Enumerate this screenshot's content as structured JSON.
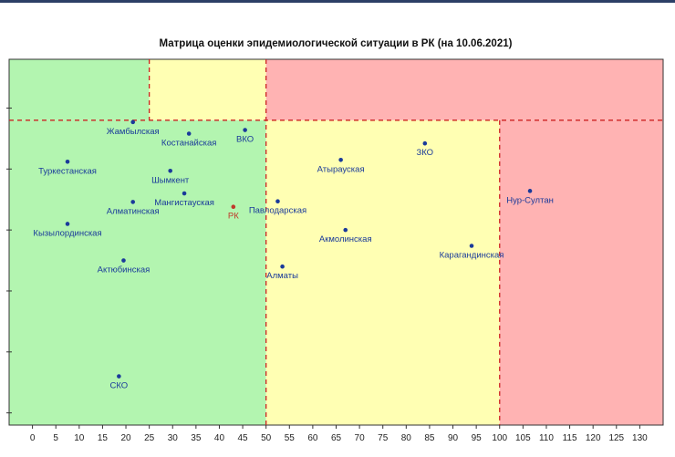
{
  "chart_data": {
    "type": "scatter",
    "title": "Матрица оценки эпидемиологической ситуации в РК (на 10.06.2021)",
    "xlabel": "",
    "ylabel": "",
    "xlim": [
      -5,
      135
    ],
    "ylim": [
      0,
      6
    ],
    "x_ticks": [
      0,
      5,
      10,
      15,
      20,
      25,
      30,
      35,
      40,
      45,
      50,
      55,
      60,
      65,
      70,
      75,
      80,
      85,
      90,
      95,
      100,
      105,
      110,
      115,
      120,
      125,
      130
    ],
    "y_ticks": [
      0.2,
      1.2,
      2.2,
      3.2,
      4.2,
      5.2
    ],
    "grid": false,
    "zones": [
      {
        "x": [
          -5,
          25
        ],
        "y": [
          5,
          6
        ],
        "color": "#b3f5b0"
      },
      {
        "x": [
          25,
          50
        ],
        "y": [
          5,
          6
        ],
        "color": "#ffffb3"
      },
      {
        "x": [
          50,
          135
        ],
        "y": [
          5,
          6
        ],
        "color": "#ffb3b3"
      },
      {
        "x": [
          -5,
          50
        ],
        "y": [
          0,
          5
        ],
        "color": "#b3f5b0"
      },
      {
        "x": [
          50,
          100
        ],
        "y": [
          0,
          5
        ],
        "color": "#ffffb3"
      },
      {
        "x": [
          100,
          135
        ],
        "y": [
          0,
          5
        ],
        "color": "#ffb3b3"
      }
    ],
    "thresholds": {
      "vertical": [
        {
          "x": 25,
          "y": [
            5,
            6
          ]
        },
        {
          "x": 50,
          "y": [
            0,
            6
          ]
        },
        {
          "x": 100,
          "y": [
            0,
            5
          ]
        }
      ],
      "horizontal": [
        {
          "y": 5
        }
      ],
      "color": "#cc2222"
    },
    "points": [
      {
        "label": "Жамбылская",
        "x": 21.5,
        "y": 4.97,
        "color": "#1a3a9a"
      },
      {
        "label": "ВКО",
        "x": 45.5,
        "y": 4.84,
        "color": "#1a3a9a"
      },
      {
        "label": "Костанайская",
        "x": 33.5,
        "y": 4.78,
        "color": "#1a3a9a"
      },
      {
        "label": "Туркестанская",
        "x": 7.5,
        "y": 4.32,
        "color": "#1a3a9a"
      },
      {
        "label": "Шымкент",
        "x": 29.5,
        "y": 4.17,
        "color": "#1a3a9a"
      },
      {
        "label": "Мангистауская",
        "x": 32.5,
        "y": 3.8,
        "color": "#1a3a9a"
      },
      {
        "label": "Алматинская",
        "x": 21.5,
        "y": 3.66,
        "color": "#1a3a9a"
      },
      {
        "label": "Кызылординская",
        "x": 7.5,
        "y": 3.3,
        "color": "#1a3a9a"
      },
      {
        "label": "Актюбинская",
        "x": 19.5,
        "y": 2.7,
        "color": "#1a3a9a"
      },
      {
        "label": "СКО",
        "x": 18.5,
        "y": 0.8,
        "color": "#1a3a9a"
      },
      {
        "label": "РК",
        "x": 43.0,
        "y": 3.58,
        "color": "#c0392b"
      },
      {
        "label": "ЗКО",
        "x": 84.0,
        "y": 4.62,
        "color": "#1a3a9a"
      },
      {
        "label": "Атырауская",
        "x": 66.0,
        "y": 4.35,
        "color": "#1a3a9a"
      },
      {
        "label": "Павлодарская",
        "x": 52.5,
        "y": 3.67,
        "color": "#1a3a9a"
      },
      {
        "label": "Нур-Султан",
        "x": 106.5,
        "y": 3.84,
        "color": "#1a3a9a"
      },
      {
        "label": "Акмолинская",
        "x": 67.0,
        "y": 3.2,
        "color": "#1a3a9a"
      },
      {
        "label": "Карагандинская",
        "x": 94.0,
        "y": 2.94,
        "color": "#1a3a9a"
      },
      {
        "label": "Алматы",
        "x": 53.5,
        "y": 2.6,
        "color": "#1a3a9a"
      }
    ]
  }
}
